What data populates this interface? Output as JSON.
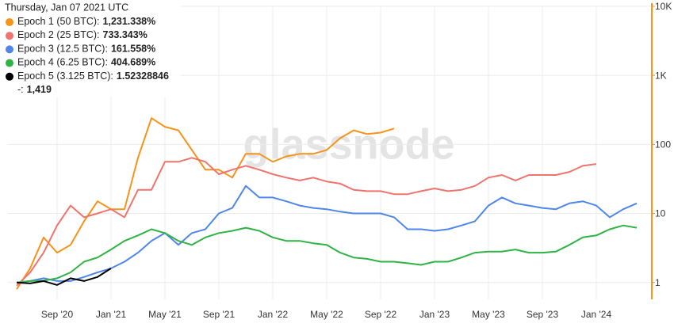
{
  "chart_data": {
    "type": "line",
    "watermark": "glassnode",
    "log_y": true,
    "grid": true,
    "axis_color": "#f7931a",
    "categories": [
      null,
      null,
      null,
      "Sep '20",
      null,
      null,
      null,
      "Jan '21",
      null,
      null,
      null,
      "May '21",
      null,
      null,
      null,
      "Sep '21",
      null,
      null,
      null,
      "Jan '22",
      null,
      null,
      null,
      "May '22",
      null,
      null,
      null,
      "Sep '22",
      null,
      null,
      null,
      "Jan '23",
      null,
      null,
      null,
      "May '23",
      null,
      null,
      null,
      "Sep '23",
      null,
      null,
      null,
      "Jan '24",
      null,
      null,
      null
    ],
    "ylim": [
      0.57,
      10000
    ],
    "yticks": [
      1,
      10,
      100,
      {
        "value": 1000,
        "label": "1K"
      },
      {
        "value": 10000,
        "label": "10K"
      }
    ],
    "series": [
      {
        "name": "Epoch 1 (50 BTC):",
        "color": "#f7931a",
        "values": [
          0.8,
          1.6,
          4.5,
          2.7,
          3.5,
          7.7,
          15,
          11.5,
          11.5,
          64,
          240,
          180,
          160,
          83,
          43,
          43,
          33,
          73,
          73,
          56,
          67,
          73,
          73,
          83,
          123,
          160,
          141,
          148,
          170,
          null,
          null,
          null,
          null,
          null,
          null,
          null,
          null,
          null,
          null,
          null,
          null,
          null,
          null,
          null,
          null,
          null,
          null
        ]
      },
      {
        "name": "Epoch 2 (25 BTC):",
        "color": "#f0736c",
        "values": [
          0.9,
          1.4,
          2.7,
          6.7,
          13,
          8.8,
          10,
          11.5,
          8.8,
          22,
          22,
          56,
          56,
          64,
          56,
          37,
          43,
          49,
          43,
          37,
          33,
          30,
          33,
          29,
          27,
          22,
          21,
          21,
          19,
          19,
          21,
          23,
          21,
          22,
          25,
          33,
          36,
          30,
          36,
          36,
          36,
          40,
          49,
          52,
          null,
          null,
          null
        ]
      },
      {
        "name": "Epoch 3 (12.5 BTC):",
        "color": "#4f86ec",
        "values": [
          1.0,
          1.05,
          1.15,
          1.05,
          1.05,
          1.2,
          1.4,
          1.6,
          2.0,
          2.7,
          4,
          5.2,
          3.5,
          5.2,
          5.9,
          10,
          12,
          25,
          17,
          17,
          15,
          13,
          12,
          11.5,
          10.6,
          10,
          10,
          10,
          8.8,
          5.9,
          5.9,
          5.6,
          5.9,
          6.7,
          7.7,
          13,
          17,
          14,
          13,
          12,
          11.5,
          14,
          15,
          13,
          8.8,
          11.5,
          14
        ]
      },
      {
        "name": "Epoch 4 (6.25 BTC):",
        "color": "#2fb344",
        "values": [
          1.0,
          1.05,
          1.06,
          1.15,
          1.4,
          2.0,
          2.3,
          3.0,
          4,
          4.8,
          5.9,
          5.2,
          4,
          3.5,
          4.5,
          5.2,
          5.6,
          6.2,
          5.6,
          4.5,
          4,
          4,
          3.7,
          3.5,
          2.7,
          2.3,
          2.2,
          2.0,
          2.0,
          1.9,
          1.8,
          2.0,
          2.0,
          2.3,
          2.7,
          2.8,
          2.8,
          3.0,
          2.7,
          2.7,
          2.8,
          3.5,
          4.5,
          4.8,
          5.9,
          6.7,
          6.2
        ]
      },
      {
        "name": "Epoch 5 (3.125 BTC):",
        "color": "#000000",
        "values": [
          1.0,
          0.97,
          1.05,
          0.92,
          1.15,
          1.05,
          1.2,
          1.6,
          null,
          null,
          null,
          null,
          null,
          null,
          null,
          null,
          null,
          null,
          null,
          null,
          null,
          null,
          null,
          null,
          null,
          null,
          null,
          null,
          null,
          null,
          null,
          null,
          null,
          null,
          null,
          null,
          null,
          null,
          null,
          null,
          null,
          null,
          null,
          null,
          null,
          null,
          null
        ]
      }
    ],
    "tooltip": {
      "date": "Thursday, Jan 07 2021 UTC",
      "values": [
        "1,231.338%",
        "733.343%",
        "161.558%",
        "404.689%",
        "1.52328846"
      ],
      "extra_label": "-:",
      "extra_value": "1,419"
    }
  }
}
